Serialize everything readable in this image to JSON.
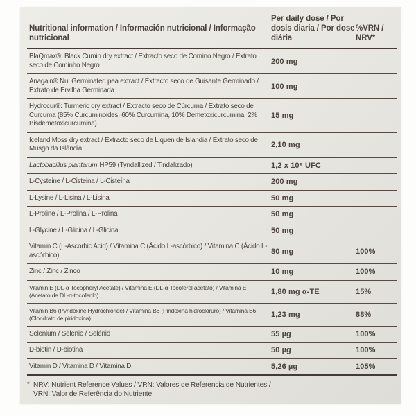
{
  "label": {
    "header": {
      "col_name": "Nutritional information / Información nutricional / Informação nutricional",
      "col_amount": "Per daily dose / Por dosis diaria / Por dose diária",
      "col_nrv": "%VRN / NRV*"
    },
    "rows": [
      {
        "name": "BlaQmax®: Black Cumin dry extract / Extracto seco de Comino Negro / Extrato seco de Cominho Negro",
        "amount": "200 mg",
        "nrv": ""
      },
      {
        "name": "Anagain® Nu: Germinated pea extract / Extracto seco de Guisante Germinado / Extrato de Ervilha Germinada",
        "amount": "100 mg",
        "nrv": ""
      },
      {
        "name": "Hydrocur®: Turmeric dry extract / Extracto seco de Cúrcuma / Extrato seco de Curcuma (85% Curcuminoides, 60% Curcumina, 10% Demetoxicurcumina, 2% Bisdemetoxicurcumina)",
        "amount": "15 mg",
        "nrv": ""
      },
      {
        "name": "Iceland Moss dry extract / Extracto seco de Liquen de Islandia / Extrato seco de Musgo da Islândia",
        "amount": "2,10 mg",
        "nrv": ""
      },
      {
        "name_italic": "Lactobacillus plantarum",
        "name": "HP59 (Tyndallized / Tindalizado)",
        "amount": "1,2 x 10⁹ UFC",
        "nrv": ""
      },
      {
        "name": "L-Cysteine / L-Cisteina / L-Cisteína",
        "amount": "200 mg",
        "nrv": ""
      },
      {
        "name": "L-Lysine / L-Lisina / L-Lisina",
        "amount": "50 mg",
        "nrv": ""
      },
      {
        "name": "L-Proline / L-Prolina / L-Prolina",
        "amount": "50 mg",
        "nrv": ""
      },
      {
        "name": "L-Glycine / L-Glicina / L-Glicina",
        "amount": "50 mg",
        "nrv": ""
      },
      {
        "name": "Vitamin C (L-Ascorbic Acid) / Vitamina C (Ácido L-ascórbico) / Vitamina C (Ácido L-ascórbico)",
        "amount": "80 mg",
        "nrv": "100%"
      },
      {
        "name": "Zinc / Zinc / Zinco",
        "amount": "10 mg",
        "nrv": "100%"
      },
      {
        "name": "Vitamin E (DL-α Tocopheryl Acetate) / Vitamina E (DL-α Tocoferol acetato) / Vitamina E (Acetato de DL-α-tocoferilo)",
        "amount": "1,80 mg α-TE",
        "nrv": "15%",
        "small": true
      },
      {
        "name": "Vitamin B6 (Pyridoxine Hydrochloride) / Vitamina B6 (Piridoxina hidrocloruro) / Vitamina B6 (Cloridrato de piridoxina)",
        "amount": "1,23 mg",
        "nrv": "88%",
        "small": true
      },
      {
        "name": "Selenium / Selenio / Selénio",
        "amount": "55 µg",
        "nrv": "100%"
      },
      {
        "name": "D-biotin / D-biotina",
        "amount": "50 µg",
        "nrv": "100%"
      },
      {
        "name": "Vitamin D / Vitamina D / Vitamina D",
        "amount": "5,26 µg",
        "nrv": "105%"
      }
    ],
    "footnote": {
      "marker": "*",
      "line1": "NRV: Nutrient Reference Values / VRN: Valores de Referencia de Nutrientes /",
      "line2": "VRN: Valor de Referência do Nutriente"
    },
    "colors": {
      "label_background": "#e8e7e1",
      "text": "#4a423c",
      "rule_thin": "#564c44",
      "rule_thick": "#443b35",
      "page_background": "#fdfdfc"
    }
  }
}
